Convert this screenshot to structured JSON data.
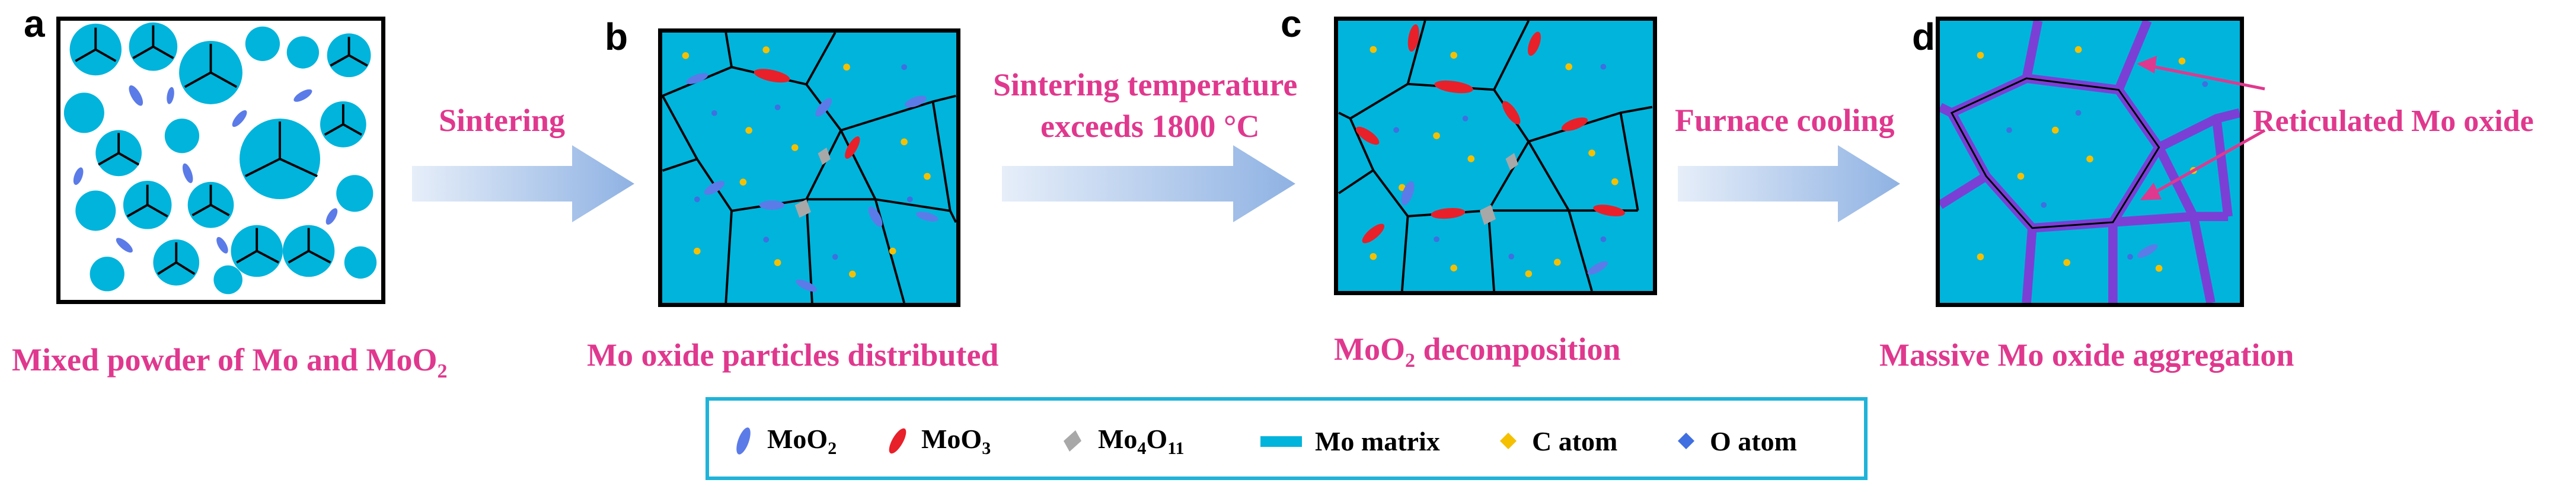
{
  "panels": [
    {
      "letter": "a",
      "caption_main": "Mixed powder of Mo and MoO",
      "caption_sub": "2",
      "caption_tail": ""
    },
    {
      "letter": "b",
      "caption_main": "Mo oxide particles distributed",
      "caption_sub": "",
      "caption_tail": ""
    },
    {
      "letter": "c",
      "caption_main": "MoO",
      "caption_sub": "2",
      "caption_tail": " decomposition"
    },
    {
      "letter": "d",
      "caption_main": "Massive Mo oxide aggregation",
      "caption_sub": "",
      "caption_tail": ""
    }
  ],
  "arrows": [
    {
      "line1": "Sintering",
      "line2": ""
    },
    {
      "line1": "Sintering temperature",
      "line2": "exceeds 1800 °C"
    },
    {
      "line1": "Furnace cooling",
      "line2": ""
    }
  ],
  "callout": "Reticulated Mo oxide",
  "legend": [
    {
      "main": "MoO",
      "sub": "2",
      "icon": "moo2-ellipse-icon"
    },
    {
      "main": "MoO",
      "sub": "3",
      "icon": "moo3-ellipse-icon"
    },
    {
      "main": "Mo",
      "sub": "4",
      "main2": "O",
      "sub2": "11",
      "icon": "mo4o11-parallelogram-icon"
    },
    {
      "main": "Mo matrix",
      "icon": "mo-matrix-rect-icon"
    },
    {
      "main": "C atom",
      "icon": "c-atom-dot-icon"
    },
    {
      "main": "O atom",
      "icon": "o-atom-dot-icon"
    }
  ],
  "colors": {
    "matrix": "#00b4dc",
    "moo2": "#5b7be8",
    "moo3": "#e8202a",
    "mo4o11": "#a8a8a8",
    "c_atom": "#f5c000",
    "o_atom": "#3f6fe0",
    "reticulated_oxide": "#7b3fd6",
    "text_accent": "#e0388e",
    "legend_border": "#1fb3d9"
  }
}
